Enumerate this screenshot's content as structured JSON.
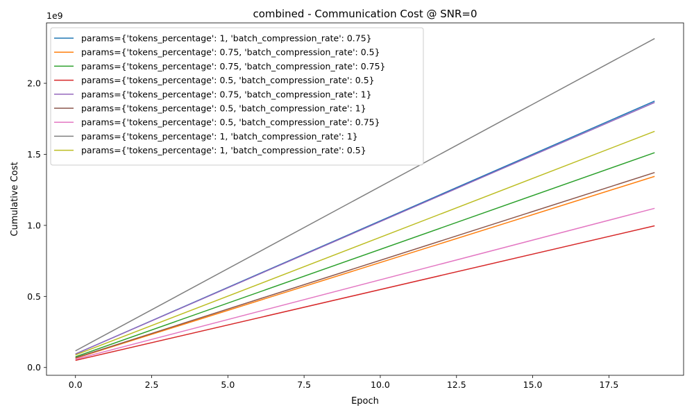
{
  "chart_data": {
    "type": "line",
    "title": "combined - Communication Cost @ SNR=0",
    "xlabel": "Epoch",
    "ylabel": "Cumulative Cost",
    "y_offset_label": "1e9",
    "xlim": [
      -0.95,
      19.95
    ],
    "ylim": [
      -0.055,
      2.425
    ],
    "x_ticks": [
      0.0,
      2.5,
      5.0,
      7.5,
      10.0,
      12.5,
      15.0,
      17.5
    ],
    "x_tick_labels": [
      "0.0",
      "2.5",
      "5.0",
      "7.5",
      "10.0",
      "12.5",
      "15.0",
      "17.5"
    ],
    "y_ticks": [
      0.0,
      0.5,
      1.0,
      1.5,
      2.0
    ],
    "y_tick_labels": [
      "0.0",
      "0.5",
      "1.0",
      "1.5",
      "2.0"
    ],
    "grid": false,
    "legend_position": "top-left",
    "x": [
      0,
      19
    ],
    "series": [
      {
        "name": "params={'tokens_percentage': 1, 'batch_compression_rate': 0.75}",
        "color": "#1f77b4",
        "values": [
          0.095,
          1.875
        ]
      },
      {
        "name": "params={'tokens_percentage': 0.75, 'batch_compression_rate': 0.5}",
        "color": "#ff7f0e",
        "values": [
          0.065,
          1.345
        ]
      },
      {
        "name": "params={'tokens_percentage': 0.75, 'batch_compression_rate': 0.75}",
        "color": "#2ca02c",
        "values": [
          0.075,
          1.512
        ]
      },
      {
        "name": "params={'tokens_percentage': 0.5, 'batch_compression_rate': 0.5}",
        "color": "#d62728",
        "values": [
          0.05,
          0.997
        ]
      },
      {
        "name": "params={'tokens_percentage': 0.75, 'batch_compression_rate': 1}",
        "color": "#9467bd",
        "values": [
          0.095,
          1.865
        ]
      },
      {
        "name": "params={'tokens_percentage': 0.5, 'batch_compression_rate': 1}",
        "color": "#8c564b",
        "values": [
          0.068,
          1.372
        ]
      },
      {
        "name": "params={'tokens_percentage': 0.5, 'batch_compression_rate': 0.75}",
        "color": "#e377c2",
        "values": [
          0.058,
          1.12
        ]
      },
      {
        "name": "params={'tokens_percentage': 1, 'batch_compression_rate': 1}",
        "color": "#7f7f7f",
        "values": [
          0.117,
          2.315
        ]
      },
      {
        "name": "params={'tokens_percentage': 1, 'batch_compression_rate': 0.5}",
        "color": "#bcbd22",
        "values": [
          0.088,
          1.662
        ]
      }
    ]
  }
}
